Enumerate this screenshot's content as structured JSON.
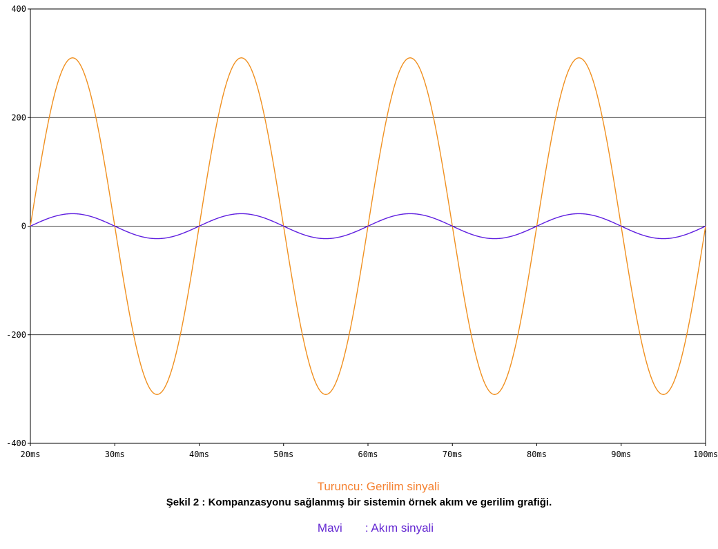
{
  "chart_data": {
    "type": "line",
    "xlim": [
      20,
      100
    ],
    "ylim": [
      -400,
      400
    ],
    "x_ticks": [
      "20ms",
      "30ms",
      "40ms",
      "50ms",
      "60ms",
      "70ms",
      "80ms",
      "90ms",
      "100ms"
    ],
    "y_ticks": [
      "400",
      "200",
      "0",
      "-200",
      "-400"
    ],
    "grid": "horizontal",
    "series": [
      {
        "key": "voltage",
        "color": "#f09020",
        "amplitude": 310,
        "frequency_hz": 50,
        "phase_ms": 20,
        "x_range": [
          20,
          100
        ]
      },
      {
        "key": "current",
        "color": "#6020e0",
        "amplitude": 23,
        "frequency_hz": 50,
        "phase_ms": 20,
        "x_range": [
          20,
          100
        ]
      }
    ]
  },
  "legend": {
    "voltage": {
      "name": "Turuncu",
      "sep": ": ",
      "label": "Gerilim sinyali",
      "color": "#f58232"
    },
    "current": {
      "name": "Mavi",
      "sep": "       : ",
      "label": "Akım sinyali",
      "color": "#6428d2"
    }
  },
  "caption": "Şekil 2 : Kompanzasyonu sağlanmış bir sistemin örnek akım ve gerilim grafiği."
}
